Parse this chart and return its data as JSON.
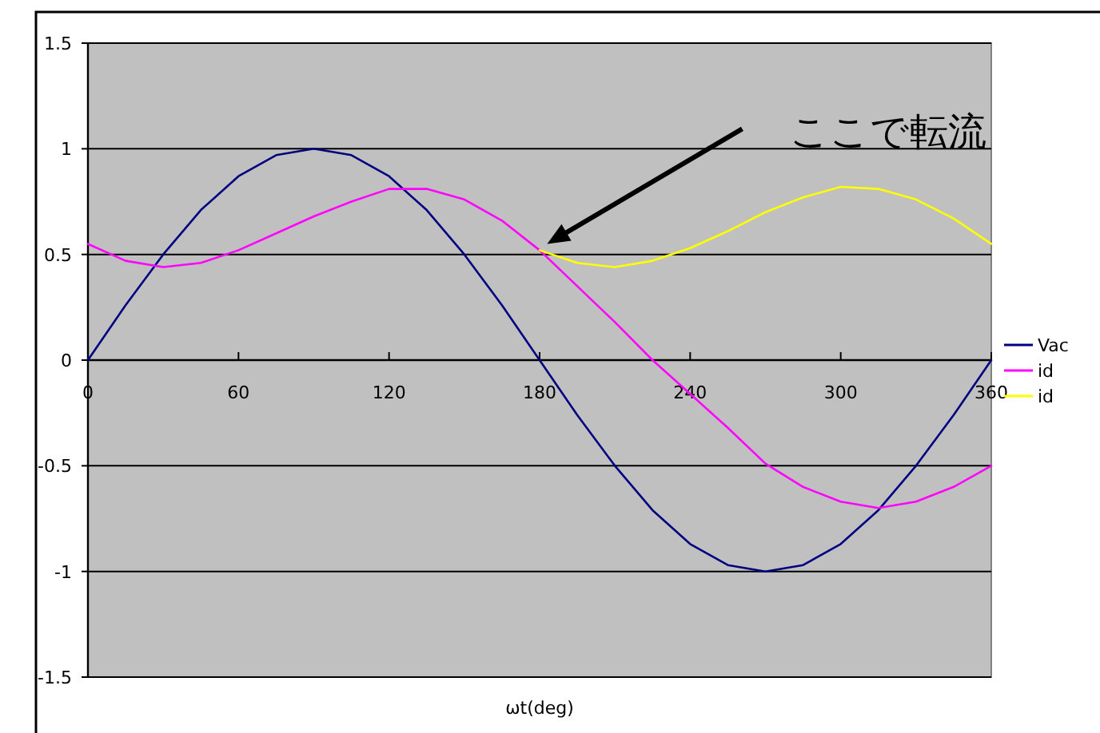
{
  "chart_data": {
    "type": "line",
    "xlabel": "ωt(deg)",
    "xlim": [
      0,
      360
    ],
    "xticks": [
      0,
      60,
      120,
      180,
      240,
      300,
      360
    ],
    "ylim": [
      -1.5,
      1.5
    ],
    "yticks": [
      -1.5,
      -1,
      -0.5,
      0,
      0.5,
      1,
      1.5
    ],
    "grid": "y",
    "legend": "right",
    "marker": "none",
    "series": [
      {
        "name": "Vac",
        "color": "#000080",
        "x": [
          0,
          15,
          30,
          45,
          60,
          75,
          90,
          105,
          120,
          135,
          150,
          165,
          180,
          195,
          210,
          225,
          240,
          255,
          270,
          285,
          300,
          315,
          330,
          345,
          360
        ],
        "values": [
          0,
          0.26,
          0.5,
          0.71,
          0.87,
          0.97,
          1,
          0.97,
          0.87,
          0.71,
          0.5,
          0.26,
          0,
          -0.26,
          -0.5,
          -0.71,
          -0.87,
          -0.97,
          -1,
          -0.97,
          -0.87,
          -0.71,
          -0.5,
          -0.26,
          0
        ]
      },
      {
        "name": "id",
        "color": "#ff00ff",
        "x": [
          0,
          15,
          30,
          45,
          60,
          75,
          90,
          105,
          120,
          135,
          150,
          165,
          180,
          195,
          210,
          225,
          240,
          255,
          270,
          285,
          300,
          315,
          330,
          345,
          360
        ],
        "values": [
          0.55,
          0.47,
          0.44,
          0.46,
          0.52,
          0.6,
          0.68,
          0.75,
          0.81,
          0.81,
          0.76,
          0.66,
          0.52,
          0.35,
          0.18,
          0,
          -0.16,
          -0.32,
          -0.49,
          -0.6,
          -0.67,
          -0.7,
          -0.67,
          -0.6,
          -0.5
        ]
      },
      {
        "name": "id",
        "color": "#ffff00",
        "x": [
          180,
          195,
          210,
          225,
          240,
          255,
          270,
          285,
          300,
          315,
          330,
          345,
          360
        ],
        "values": [
          0.52,
          0.46,
          0.44,
          0.47,
          0.53,
          0.61,
          0.7,
          0.77,
          0.82,
          0.81,
          0.76,
          0.67,
          0.55
        ]
      }
    ],
    "annotations": [
      {
        "text": "ここで転流",
        "x": 183,
        "y": 0.55
      }
    ]
  }
}
